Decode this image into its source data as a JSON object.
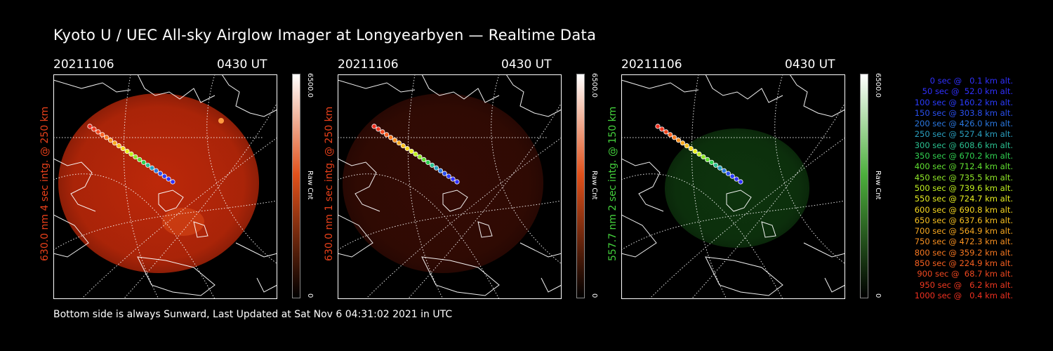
{
  "title": "Kyoto U / UEC All-sky Airglow Imager at Longyearbyen — Realtime Data",
  "footer": "Bottom side is always Sunward, Last Updated at Sat Nov  6 04:31:02 2021 in UTC",
  "panels": [
    {
      "date": "20211106",
      "time": "0430 UT",
      "ylabel": "630.0 nm 4 sec intg. @ 250 km",
      "label_color": "#e8401a",
      "cbar_max": "6500.0",
      "cbar_min": "0",
      "cbar_unit": "Raw Cnt",
      "image_color": "#c62a0a",
      "image_brightness": "high"
    },
    {
      "date": "20211106",
      "time": "0430 UT",
      "ylabel": "630.0 nm 1 sec intg. @ 250 km",
      "label_color": "#e8401a",
      "cbar_max": "6500.0",
      "cbar_min": "0",
      "cbar_unit": "Raw Cnt",
      "image_color": "#3a0c04",
      "image_brightness": "low"
    },
    {
      "date": "20211106",
      "time": "0430 UT",
      "ylabel": "557.7 nm 2 sec intg. @ 150 km",
      "label_color": "#44d23c",
      "cbar_max": "6500.0",
      "cbar_min": "0",
      "cbar_unit": "Raw Cnt",
      "image_color": "#0f3a0f",
      "image_brightness": "medium"
    }
  ],
  "legend": [
    {
      "text": "0 sec @   0.1 km alt.",
      "color": "#3030ff"
    },
    {
      "text": "50 sec @  52.0 km alt.",
      "color": "#3030ff"
    },
    {
      "text": "100 sec @ 160.2 km alt.",
      "color": "#2a3cff"
    },
    {
      "text": "150 sec @ 303.8 km alt.",
      "color": "#2a50f0"
    },
    {
      "text": "200 sec @ 426.0 km alt.",
      "color": "#2a78e0"
    },
    {
      "text": "250 sec @ 527.4 km alt.",
      "color": "#2aa0c0"
    },
    {
      "text": "300 sec @ 608.6 km alt.",
      "color": "#2ac090"
    },
    {
      "text": "350 sec @ 670.2 km alt.",
      "color": "#30d050"
    },
    {
      "text": "400 sec @ 712.4 km alt.",
      "color": "#60e030"
    },
    {
      "text": "450 sec @ 735.5 km alt.",
      "color": "#90e828"
    },
    {
      "text": "500 sec @ 739.6 km alt.",
      "color": "#c0f020"
    },
    {
      "text": "550 sec @ 724.7 km alt.",
      "color": "#e8f020"
    },
    {
      "text": "600 sec @ 690.8 km alt.",
      "color": "#f8d820"
    },
    {
      "text": "650 sec @ 637.6 km alt.",
      "color": "#f8c020"
    },
    {
      "text": "700 sec @ 564.9 km alt.",
      "color": "#f8a820"
    },
    {
      "text": "750 sec @ 472.3 km alt.",
      "color": "#f89020"
    },
    {
      "text": "800 sec @ 359.2 km alt.",
      "color": "#f87820"
    },
    {
      "text": "850 sec @ 224.9 km alt.",
      "color": "#f86020"
    },
    {
      "text": "900 sec @  68.7 km alt.",
      "color": "#f04820"
    },
    {
      "text": "950 sec @   6.2 km alt.",
      "color": "#f03820"
    },
    {
      "text": "1000 sec @   0.4 km alt.",
      "color": "#f03020"
    }
  ]
}
